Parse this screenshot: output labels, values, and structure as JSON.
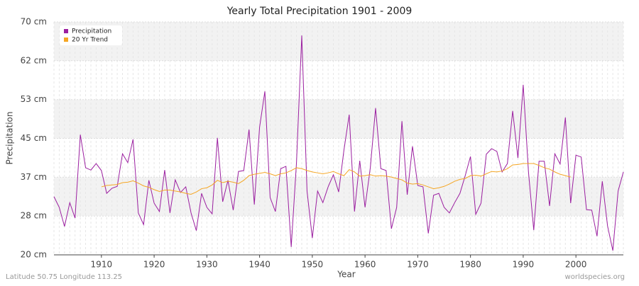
{
  "chart_data": {
    "type": "line",
    "title": "Yearly Total Precipitation 1901 - 2009",
    "x_label": "Year",
    "y_label": "Precipitation",
    "footer_left": "Latitude 50.75 Longitude 113.25",
    "footer_right": "worldspecies.org",
    "x": [
      1901,
      1902,
      1903,
      1904,
      1905,
      1906,
      1907,
      1908,
      1909,
      1910,
      1911,
      1912,
      1913,
      1914,
      1915,
      1916,
      1917,
      1918,
      1919,
      1920,
      1921,
      1922,
      1923,
      1924,
      1925,
      1926,
      1927,
      1928,
      1929,
      1930,
      1931,
      1932,
      1933,
      1934,
      1935,
      1936,
      1937,
      1938,
      1939,
      1940,
      1941,
      1942,
      1943,
      1944,
      1945,
      1946,
      1947,
      1948,
      1949,
      1950,
      1951,
      1952,
      1953,
      1954,
      1955,
      1956,
      1957,
      1958,
      1959,
      1960,
      1961,
      1962,
      1963,
      1964,
      1965,
      1966,
      1967,
      1968,
      1969,
      1970,
      1971,
      1972,
      1973,
      1974,
      1975,
      1976,
      1977,
      1978,
      1979,
      1980,
      1981,
      1982,
      1983,
      1984,
      1985,
      1986,
      1987,
      1988,
      1989,
      1990,
      1991,
      1992,
      1993,
      1994,
      1995,
      1996,
      1997,
      1998,
      1999,
      2000,
      2001,
      2002,
      2003,
      2004,
      2005,
      2006,
      2007,
      2008,
      2009
    ],
    "series": [
      {
        "name": "Precipitation",
        "color": "#9b1fa0",
        "values": [
          32.5,
          30.2,
          26.1,
          31.2,
          27.9,
          45.8,
          38.7,
          38.2,
          39.6,
          38.1,
          33.2,
          34.3,
          34.7,
          41.7,
          39.8,
          44.8,
          29.0,
          26.5,
          36.0,
          31.1,
          29.3,
          38.2,
          29.0,
          36.1,
          33.4,
          34.6,
          29.0,
          25.2,
          33.2,
          30.2,
          28.8,
          45.1,
          31.4,
          36.0,
          29.6,
          37.9,
          38.1,
          46.9,
          30.8,
          47.4,
          55.1,
          32.3,
          29.3,
          38.5,
          39.0,
          21.7,
          39.8,
          67.1,
          33.7,
          23.6,
          33.7,
          31.2,
          34.6,
          37.2,
          33.5,
          42.5,
          50.1,
          29.3,
          40.2,
          30.2,
          38.7,
          51.5,
          38.5,
          38.1,
          25.6,
          30.2,
          48.7,
          32.9,
          43.3,
          34.9,
          34.6,
          24.6,
          32.8,
          33.2,
          30.2,
          29.0,
          31.2,
          33.2,
          37.0,
          41.1,
          28.7,
          31.1,
          41.6,
          42.8,
          42.2,
          37.8,
          39.6,
          50.9,
          40.8,
          56.5,
          37.8,
          25.3,
          40.1,
          40.1,
          30.5,
          41.7,
          39.5,
          49.5,
          31.1,
          41.4,
          41.0,
          29.7,
          29.6,
          24.0,
          35.8,
          26.2,
          20.9,
          33.7,
          37.8
        ]
      },
      {
        "name": "20 Yr Trend",
        "color": "#f5a623",
        "values": [
          null,
          null,
          null,
          null,
          null,
          null,
          null,
          null,
          null,
          34.6,
          34.9,
          35.0,
          35.1,
          35.5,
          35.6,
          35.9,
          35.4,
          34.8,
          34.5,
          34.0,
          33.6,
          33.9,
          33.9,
          33.7,
          33.5,
          33.2,
          33.0,
          33.5,
          34.2,
          34.4,
          35.0,
          36.0,
          35.5,
          35.8,
          35.6,
          35.3,
          36.0,
          37.0,
          37.3,
          37.5,
          37.7,
          37.4,
          37.0,
          37.4,
          37.6,
          38.1,
          38.7,
          38.5,
          38.1,
          37.8,
          37.6,
          37.4,
          37.6,
          37.9,
          37.4,
          37.0,
          38.3,
          37.8,
          36.9,
          37.0,
          37.2,
          36.9,
          37.0,
          36.9,
          36.7,
          36.4,
          36.1,
          35.4,
          35.2,
          35.3,
          35.0,
          34.6,
          34.2,
          34.4,
          34.7,
          35.2,
          35.8,
          36.2,
          36.4,
          37.0,
          37.1,
          36.9,
          37.4,
          37.9,
          37.8,
          38.0,
          38.5,
          39.3,
          39.4,
          39.6,
          39.6,
          39.6,
          39.2,
          38.7,
          38.4,
          37.8,
          37.3,
          37.0,
          36.7,
          null,
          null,
          null,
          null,
          null,
          null,
          null,
          null,
          null,
          null
        ]
      }
    ],
    "xlim": [
      1901,
      2009
    ],
    "xticks": [
      1910,
      1920,
      1930,
      1940,
      1950,
      1960,
      1970,
      1980,
      1990,
      2000
    ],
    "ylim": [
      20,
      70
    ],
    "yticks": [
      {
        "value": 20,
        "label": "20 cm"
      },
      {
        "value": 28.33,
        "label": "28 cm"
      },
      {
        "value": 36.67,
        "label": "37 cm"
      },
      {
        "value": 45,
        "label": "45 cm"
      },
      {
        "value": 53.33,
        "label": "53 cm"
      },
      {
        "value": 61.67,
        "label": "62 cm"
      },
      {
        "value": 70,
        "label": "70 cm"
      }
    ],
    "grid": true,
    "legend": "top-left"
  }
}
